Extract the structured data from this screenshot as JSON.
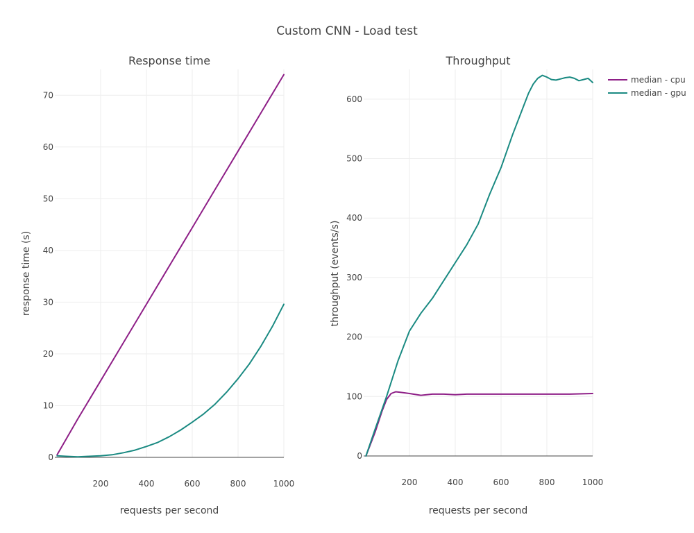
{
  "chart_data": {
    "title": "Custom CNN - Load test",
    "legend": {
      "placement": "top-right",
      "entries": [
        {
          "name": "median - cpu",
          "color": "#8e1f87"
        },
        {
          "name": "median - gpu",
          "color": "#1a8a82"
        }
      ]
    },
    "panels": [
      {
        "type": "line",
        "title": "Response time",
        "xlabel": "requests per second",
        "ylabel": "response time (s)",
        "xlim": [
          0,
          1000
        ],
        "ylim": [
          0,
          75
        ],
        "xticks": [
          200,
          400,
          600,
          800,
          1000
        ],
        "yticks": [
          0,
          10,
          20,
          30,
          40,
          50,
          60,
          70
        ],
        "grid": true,
        "series": [
          {
            "name": "median - cpu",
            "color": "#8e1f87",
            "x": [
              10,
              100,
              200,
              300,
              400,
              500,
              600,
              700,
              800,
              900,
              1000
            ],
            "y": [
              0.5,
              7.4,
              14.8,
              22.2,
              29.6,
              37.0,
              44.4,
              51.8,
              59.2,
              66.6,
              74.0
            ]
          },
          {
            "name": "median - gpu",
            "color": "#1a8a82",
            "x": [
              10,
              50,
              100,
              150,
              200,
              250,
              300,
              350,
              400,
              450,
              500,
              550,
              600,
              650,
              700,
              750,
              800,
              850,
              900,
              950,
              1000
            ],
            "y": [
              0.3,
              0.2,
              0.1,
              0.2,
              0.3,
              0.5,
              0.9,
              1.4,
              2.1,
              2.9,
              4.0,
              5.3,
              6.8,
              8.4,
              10.3,
              12.6,
              15.2,
              18.1,
              21.5,
              25.3,
              29.6
            ]
          }
        ]
      },
      {
        "type": "line",
        "title": "Throughput",
        "xlabel": "requests per second",
        "ylabel": "throughput (events/s)",
        "xlim": [
          0,
          1000
        ],
        "ylim": [
          0,
          650
        ],
        "xticks": [
          200,
          400,
          600,
          800,
          1000
        ],
        "yticks": [
          0,
          100,
          200,
          300,
          400,
          500,
          600
        ],
        "grid": true,
        "series": [
          {
            "name": "median - cpu",
            "color": "#8e1f87",
            "x": [
              10,
              50,
              80,
              100,
              120,
              140,
              160,
              200,
              250,
              300,
              350,
              400,
              450,
              500,
              550,
              600,
              650,
              700,
              750,
              800,
              900,
              1000
            ],
            "y": [
              0,
              40,
              75,
              95,
              105,
              108,
              107,
              105,
              102,
              104,
              104,
              103,
              104,
              104,
              104,
              104,
              104,
              104,
              104,
              104,
              104,
              105
            ]
          },
          {
            "name": "median - gpu",
            "color": "#1a8a82",
            "x": [
              10,
              50,
              100,
              150,
              200,
              250,
              300,
              350,
              400,
              450,
              500,
              550,
              600,
              650,
              700,
              720,
              740,
              760,
              780,
              800,
              820,
              840,
              860,
              880,
              900,
              920,
              940,
              960,
              980,
              1000
            ],
            "y": [
              0,
              45,
              100,
              160,
              210,
              240,
              265,
              295,
              325,
              355,
              390,
              440,
              485,
              540,
              590,
              610,
              625,
              635,
              640,
              637,
              633,
              632,
              634,
              636,
              637,
              635,
              631,
              633,
              635,
              628
            ]
          }
        ]
      }
    ]
  }
}
